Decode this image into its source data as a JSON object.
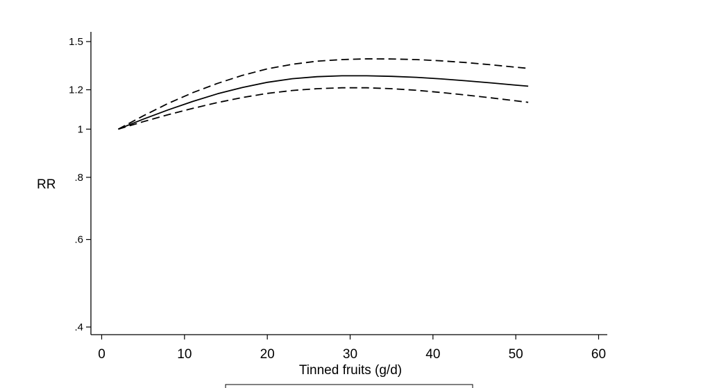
{
  "chart_data": {
    "type": "line",
    "title": "",
    "xlabel": "Tinned fruits (g/d)",
    "ylabel": "RR",
    "xlim": [
      -1,
      61
    ],
    "ylim": [
      0.385,
      1.53
    ],
    "y_scale": "log",
    "grid": false,
    "legend": "bottom (box, cropped)",
    "x_ticks": [
      0,
      10,
      20,
      30,
      40,
      50,
      60
    ],
    "x_tick_labels": [
      "0",
      "10",
      "20",
      "30",
      "40",
      "50",
      "60"
    ],
    "y_ticks": [
      0.4,
      0.6,
      0.8,
      1,
      1.2,
      1.5
    ],
    "y_tick_labels": [
      ".4",
      ".6",
      ".8",
      "1",
      "1.2",
      "1.5"
    ],
    "x": [
      2,
      5,
      8,
      11,
      14,
      17,
      20,
      23,
      26,
      29,
      32,
      35,
      38,
      41,
      44,
      47,
      50,
      51.5
    ],
    "series": [
      {
        "style": "solid",
        "color": "#000000",
        "values": [
          1.0,
          1.047,
          1.093,
          1.137,
          1.178,
          1.213,
          1.242,
          1.263,
          1.275,
          1.28,
          1.28,
          1.277,
          1.271,
          1.262,
          1.251,
          1.239,
          1.226,
          1.22
        ]
      },
      {
        "style": "dashed",
        "color": "#000000",
        "values": [
          1.0,
          1.063,
          1.126,
          1.184,
          1.236,
          1.283,
          1.322,
          1.35,
          1.37,
          1.38,
          1.385,
          1.384,
          1.38,
          1.372,
          1.361,
          1.347,
          1.332,
          1.325
        ]
      },
      {
        "style": "dashed",
        "color": "#000000",
        "values": [
          1.0,
          1.035,
          1.069,
          1.101,
          1.131,
          1.158,
          1.18,
          1.196,
          1.206,
          1.211,
          1.211,
          1.206,
          1.197,
          1.185,
          1.171,
          1.156,
          1.14,
          1.132
        ]
      }
    ]
  }
}
